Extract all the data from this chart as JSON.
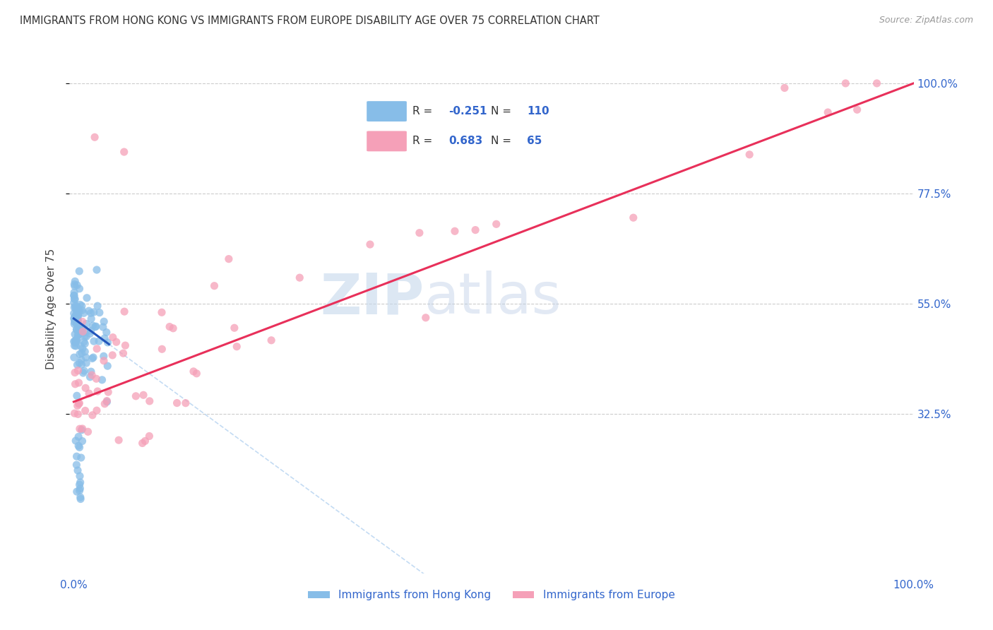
{
  "title": "IMMIGRANTS FROM HONG KONG VS IMMIGRANTS FROM EUROPE DISABILITY AGE OVER 75 CORRELATION CHART",
  "source": "Source: ZipAtlas.com",
  "ylabel": "Disability Age Over 75",
  "r_hk": -0.251,
  "n_hk": 110,
  "r_eu": 0.683,
  "n_eu": 65,
  "legend_hk": "Immigrants from Hong Kong",
  "legend_eu": "Immigrants from Europe",
  "color_hk": "#87bde8",
  "color_eu": "#f5a0b8",
  "line_color_hk": "#2255bb",
  "line_color_eu": "#e8305a",
  "line_color_hk_dash": "#aaccee",
  "watermark_zip": "ZIP",
  "watermark_atlas": "atlas",
  "ytick_vals": [
    0.325,
    0.55,
    0.775,
    1.0
  ],
  "ytick_labels": [
    "32.5%",
    "55.0%",
    "77.5%",
    "100.0%"
  ],
  "hk_seed": 12345,
  "eu_seed": 42
}
